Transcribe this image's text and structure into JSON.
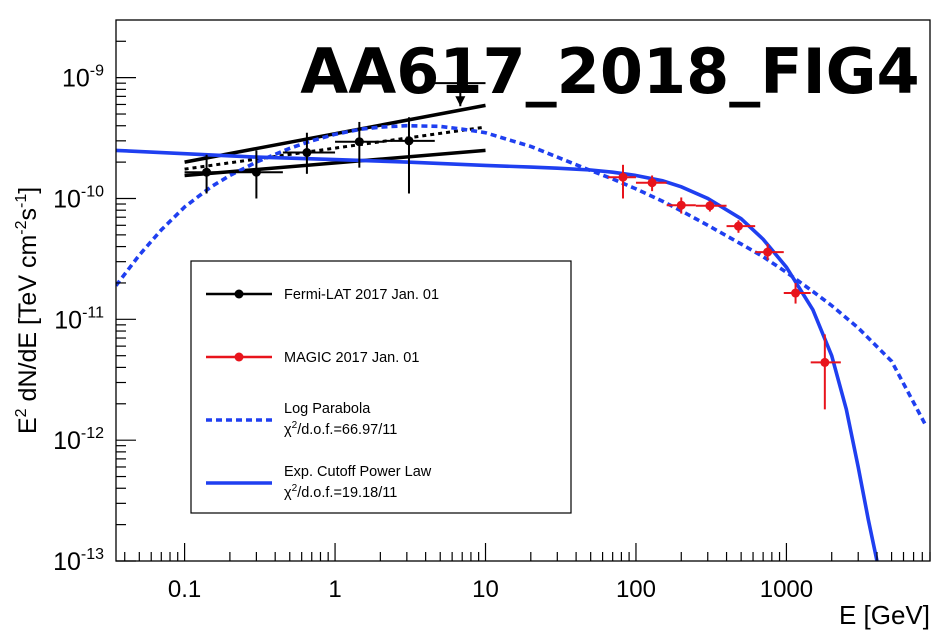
{
  "chart_data": {
    "type": "scatter",
    "title": "",
    "watermark": "AA617_2018_FIG4",
    "xlabel": "E [GeV]",
    "ylabel_parts": {
      "base": "E",
      "sup1": "2",
      "mid": " dN/dE [TeV cm",
      "sup2": "-2",
      "mid2": "s",
      "sup3": "-1",
      "end": "]"
    },
    "x_scale": "log",
    "y_scale": "log",
    "xlim": [
      0.035,
      9000
    ],
    "ylim": [
      1e-13,
      3e-09
    ],
    "x_ticks": [
      {
        "value": 0.1,
        "label": "0.1"
      },
      {
        "value": 1,
        "label": "1"
      },
      {
        "value": 10,
        "label": "10"
      },
      {
        "value": 100,
        "label": "100"
      },
      {
        "value": 1000,
        "label": "1000"
      }
    ],
    "y_ticks": [
      {
        "value": 1e-13,
        "base": "10",
        "exp": "-13"
      },
      {
        "value": 1e-12,
        "base": "10",
        "exp": "-12"
      },
      {
        "value": 1e-11,
        "base": "10",
        "exp": "-11"
      },
      {
        "value": 1e-10,
        "base": "10",
        "exp": "-10"
      },
      {
        "value": 1e-09,
        "base": "10",
        "exp": "-9"
      }
    ],
    "colors": {
      "fermi": "#000000",
      "magic": "#e8141c",
      "model": "#1f3ff0",
      "watermark": "#1f63a6"
    },
    "legend": [
      {
        "key": "fermi",
        "label": "Fermi-LAT 2017 Jan. 01",
        "style": "marker-line",
        "color": "#000000"
      },
      {
        "key": "magic",
        "label": "MAGIC 2017 Jan. 01",
        "style": "marker-line",
        "color": "#e8141c"
      },
      {
        "key": "logpar",
        "label": "Log Parabola",
        "chi_base": "χ",
        "chi_sup": "2",
        "chi_text": "/d.o.f.=66.97/11",
        "style": "dashed",
        "color": "#1f3ff0"
      },
      {
        "key": "ecpl",
        "label": "Exp. Cutoff Power Law",
        "chi_base": "χ",
        "chi_sup": "2",
        "chi_text": "/d.o.f.=19.18/11",
        "style": "solid",
        "color": "#1f3ff0"
      }
    ],
    "series": [
      {
        "name": "Fermi-LAT 2017 Jan. 01",
        "kind": "points",
        "color": "#000000",
        "points": [
          {
            "x": 0.14,
            "y": 1.65e-10,
            "xlo": 0.1,
            "xhi": 0.2,
            "ylo": 1.1e-10,
            "yhi": 2.3e-10
          },
          {
            "x": 0.3,
            "y": 1.65e-10,
            "xlo": 0.2,
            "xhi": 0.45,
            "ylo": 1e-10,
            "yhi": 2.5e-10
          },
          {
            "x": 0.65,
            "y": 2.4e-10,
            "xlo": 0.45,
            "xhi": 1.0,
            "ylo": 1.6e-10,
            "yhi": 3.5e-10
          },
          {
            "x": 1.45,
            "y": 2.95e-10,
            "xlo": 1.0,
            "xhi": 2.1,
            "ylo": 1.8e-10,
            "yhi": 4.3e-10
          },
          {
            "x": 3.1,
            "y": 3e-10,
            "xlo": 2.1,
            "xhi": 4.6,
            "ylo": 1.1e-10,
            "yhi": 4.7e-10
          }
        ]
      },
      {
        "name": "Fermi-LAT upper limit",
        "kind": "upper_limit",
        "color": "#000000",
        "points": [
          {
            "x": 6.8,
            "y": 9e-10,
            "xlo": 4.6,
            "xhi": 10,
            "yarrow": 5.8e-10
          }
        ]
      },
      {
        "name": "MAGIC 2017 Jan. 01",
        "kind": "points",
        "color": "#e8141c",
        "points": [
          {
            "x": 82,
            "y": 1.5e-10,
            "xlo": 65,
            "xhi": 100,
            "ylo": 1e-10,
            "yhi": 1.9e-10
          },
          {
            "x": 128,
            "y": 1.35e-10,
            "xlo": 100,
            "xhi": 160,
            "ylo": 1.15e-10,
            "yhi": 1.55e-10
          },
          {
            "x": 200,
            "y": 8.8e-11,
            "xlo": 160,
            "xhi": 250,
            "ylo": 7.5e-11,
            "yhi": 1.02e-10
          },
          {
            "x": 310,
            "y": 8.7e-11,
            "xlo": 250,
            "xhi": 400,
            "ylo": 7.8e-11,
            "yhi": 9.6e-11
          },
          {
            "x": 480,
            "y": 5.9e-11,
            "xlo": 400,
            "xhi": 620,
            "ylo": 5.2e-11,
            "yhi": 6.6e-11
          },
          {
            "x": 750,
            "y": 3.6e-11,
            "xlo": 620,
            "xhi": 960,
            "ylo": 3.1e-11,
            "yhi": 4.2e-11
          },
          {
            "x": 1150,
            "y": 1.65e-11,
            "xlo": 960,
            "xhi": 1450,
            "ylo": 1.35e-11,
            "yhi": 2e-11
          },
          {
            "x": 1800,
            "y": 4.4e-12,
            "xlo": 1450,
            "xhi": 2300,
            "ylo": 1.8e-12,
            "yhi": 7.5e-12
          }
        ]
      },
      {
        "name": "Fermi fit",
        "kind": "band",
        "color": "#000000",
        "lines": [
          {
            "x": [
              0.1,
              10
            ],
            "y": [
              2e-10,
              5.9e-10
            ],
            "width": 3.5,
            "dash": ""
          },
          {
            "x": [
              0.1,
              10
            ],
            "y": [
              1.55e-10,
              2.5e-10
            ],
            "width": 3.5,
            "dash": ""
          },
          {
            "x": [
              0.1,
              10
            ],
            "y": [
              1.75e-10,
              3.9e-10
            ],
            "width": 3,
            "dash": "4,4"
          }
        ]
      },
      {
        "name": "Log Parabola",
        "kind": "curve",
        "color": "#1f3ff0",
        "dash": "6,4",
        "x": [
          0.035,
          0.05,
          0.07,
          0.1,
          0.15,
          0.2,
          0.3,
          0.5,
          0.7,
          1,
          1.5,
          2,
          3,
          5,
          7,
          10,
          15,
          20,
          30,
          50,
          70,
          100,
          150,
          200,
          300,
          500,
          700,
          1000,
          1500,
          2000,
          3000,
          5000,
          8500
        ],
        "y": [
          1.9e-11,
          3.4e-11,
          5.5e-11,
          8.5e-11,
          1.25e-10,
          1.55e-10,
          2e-10,
          2.6e-10,
          3e-10,
          3.4e-10,
          3.75e-10,
          3.9e-10,
          4e-10,
          3.95e-10,
          3.75e-10,
          3.5e-10,
          3e-10,
          2.7e-10,
          2.2e-10,
          1.7e-10,
          1.45e-10,
          1.2e-10,
          9.5e-11,
          7.9e-11,
          6e-11,
          4.2e-11,
          3.3e-11,
          2.45e-11,
          1.7e-11,
          1.3e-11,
          8.5e-12,
          4.5e-12,
          1.3e-12
        ]
      },
      {
        "name": "Exp. Cutoff Power Law",
        "kind": "curve",
        "color": "#1f3ff0",
        "dash": "",
        "x": [
          0.035,
          0.1,
          0.3,
          1,
          3,
          10,
          20,
          30,
          50,
          70,
          100,
          150,
          200,
          300,
          500,
          700,
          1000,
          1500,
          2000,
          2500,
          3000,
          3500,
          4000
        ],
        "y": [
          2.5e-10,
          2.35e-10,
          2.2e-10,
          2.1e-10,
          2e-10,
          1.88e-10,
          1.82e-10,
          1.78e-10,
          1.72e-10,
          1.65e-10,
          1.55e-10,
          1.4e-10,
          1.25e-10,
          1e-10,
          6.8e-11,
          4.6e-11,
          2.7e-11,
          1.2e-11,
          5e-12,
          1.8e-12,
          6e-13,
          2.2e-13,
          1e-13
        ]
      }
    ]
  }
}
